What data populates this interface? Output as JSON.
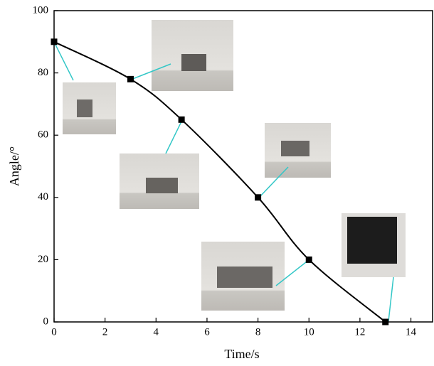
{
  "chart_data": {
    "type": "line",
    "x_label": "Time/s",
    "y_label": "Angle/°",
    "x": [
      0,
      3,
      5,
      8,
      10,
      13
    ],
    "values": [
      90,
      78,
      65,
      40,
      20,
      0
    ],
    "color": "#000000",
    "xlim": [
      0,
      14.85
    ],
    "xticks": [
      0,
      2,
      4,
      6,
      8,
      10,
      12,
      14
    ],
    "ylim": [
      0,
      100
    ],
    "yticks": [
      0,
      20,
      40,
      60,
      80,
      100
    ]
  }
}
